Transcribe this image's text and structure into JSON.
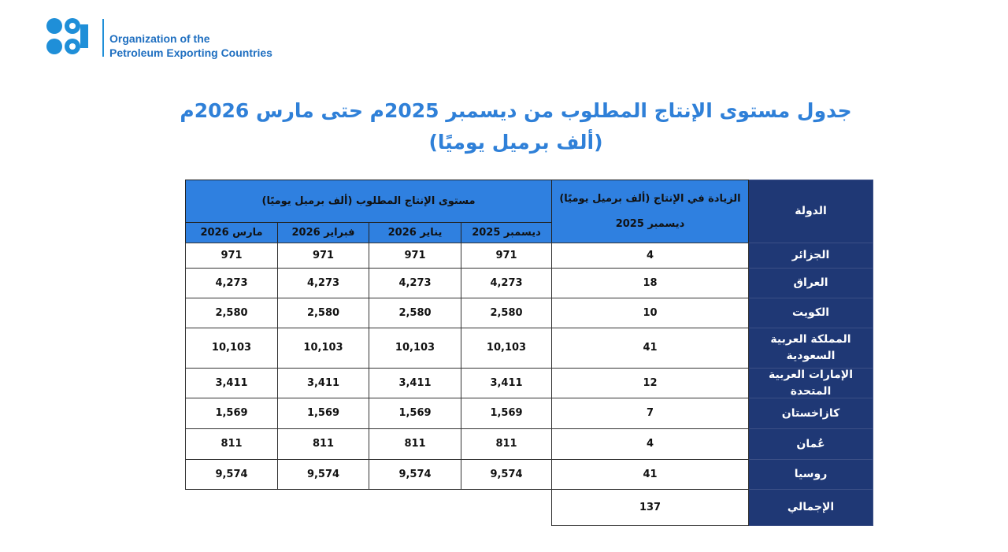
{
  "header": {
    "org_name_line1": "Organization of the",
    "org_name_line2": "Petroleum Exporting Countries"
  },
  "title": {
    "line1": "جدول مستوى الإنتاج المطلوب من ديسمبر 2025م حتى مارس 2026م",
    "line2": "(ألف برميل يوميًا)"
  },
  "table": {
    "country_header": "الدولة",
    "increase_header": "الزيادة في الإنتاج (ألف برميل يوميًا)",
    "increase_subheader": "ديسمبر 2025",
    "production_header": "مستوى الإنتاج المطلوب (ألف برميل يوميًا)",
    "months": [
      "ديسمبر 2025",
      "يناير 2026",
      "فبراير 2026",
      "مارس 2026"
    ],
    "rows": [
      {
        "country": "الجزائر",
        "increase": "4",
        "production": [
          "971",
          "971",
          "971",
          "971"
        ]
      },
      {
        "country": "العراق",
        "increase": "18",
        "production": [
          "4,273",
          "4,273",
          "4,273",
          "4,273"
        ]
      },
      {
        "country": "الكويت",
        "increase": "10",
        "production": [
          "2,580",
          "2,580",
          "2,580",
          "2,580"
        ]
      },
      {
        "country": "المملكة العربية السعودية",
        "increase": "41",
        "production": [
          "10,103",
          "10,103",
          "10,103",
          "10,103"
        ]
      },
      {
        "country": "الإمارات العربية المتحدة",
        "increase": "12",
        "production": [
          "3,411",
          "3,411",
          "3,411",
          "3,411"
        ]
      },
      {
        "country": "كازاخستان",
        "increase": "7",
        "production": [
          "1,569",
          "1,569",
          "1,569",
          "1,569"
        ]
      },
      {
        "country": "عُمان",
        "increase": "4",
        "production": [
          "811",
          "811",
          "811",
          "811"
        ]
      },
      {
        "country": "روسيا",
        "increase": "41",
        "production": [
          "9,574",
          "9,574",
          "9,574",
          "9,574"
        ]
      }
    ],
    "total": {
      "label": "الإجمالي",
      "value": "137"
    }
  }
}
